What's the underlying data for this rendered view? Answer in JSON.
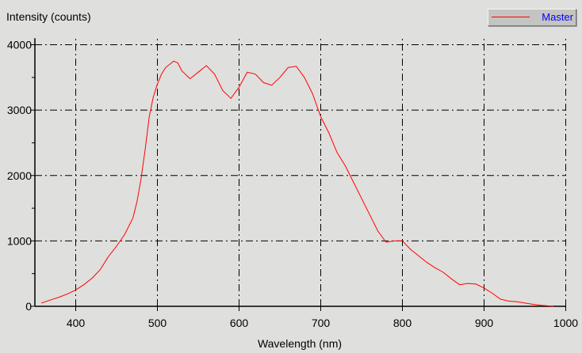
{
  "chart_data": {
    "type": "line",
    "xlabel": "Wavelength (nm)",
    "ylabel": "Intensity (counts)",
    "xlim": [
      350,
      1000
    ],
    "ylim": [
      0,
      4100
    ],
    "xticks": [
      400,
      500,
      600,
      700,
      800,
      900,
      1000
    ],
    "yticks": [
      0,
      1000,
      2000,
      3000,
      4000
    ],
    "grid": true,
    "legend_position": "top-right",
    "series": [
      {
        "name": "Master",
        "color": "#ff0000",
        "x": [
          358,
          370,
          380,
          390,
          400,
          410,
          420,
          430,
          440,
          450,
          460,
          470,
          475,
          480,
          485,
          490,
          495,
          500,
          505,
          510,
          520,
          525,
          530,
          540,
          550,
          560,
          570,
          580,
          590,
          600,
          610,
          620,
          630,
          640,
          650,
          660,
          670,
          680,
          690,
          700,
          710,
          720,
          730,
          740,
          750,
          760,
          770,
          780,
          790,
          800,
          810,
          820,
          830,
          840,
          850,
          860,
          870,
          880,
          890,
          900,
          910,
          920,
          930,
          940,
          950,
          960,
          970,
          980,
          985
        ],
        "y": [
          50,
          100,
          140,
          190,
          250,
          330,
          430,
          560,
          760,
          920,
          1100,
          1350,
          1600,
          1950,
          2400,
          2900,
          3200,
          3400,
          3550,
          3650,
          3750,
          3720,
          3600,
          3480,
          3580,
          3680,
          3550,
          3300,
          3180,
          3350,
          3580,
          3550,
          3420,
          3380,
          3500,
          3650,
          3670,
          3500,
          3250,
          2900,
          2650,
          2350,
          2150,
          1900,
          1650,
          1400,
          1150,
          980,
          1000,
          1000,
          870,
          770,
          670,
          590,
          520,
          420,
          330,
          350,
          340,
          280,
          200,
          110,
          80,
          70,
          50,
          30,
          15,
          5,
          0
        ]
      }
    ]
  }
}
